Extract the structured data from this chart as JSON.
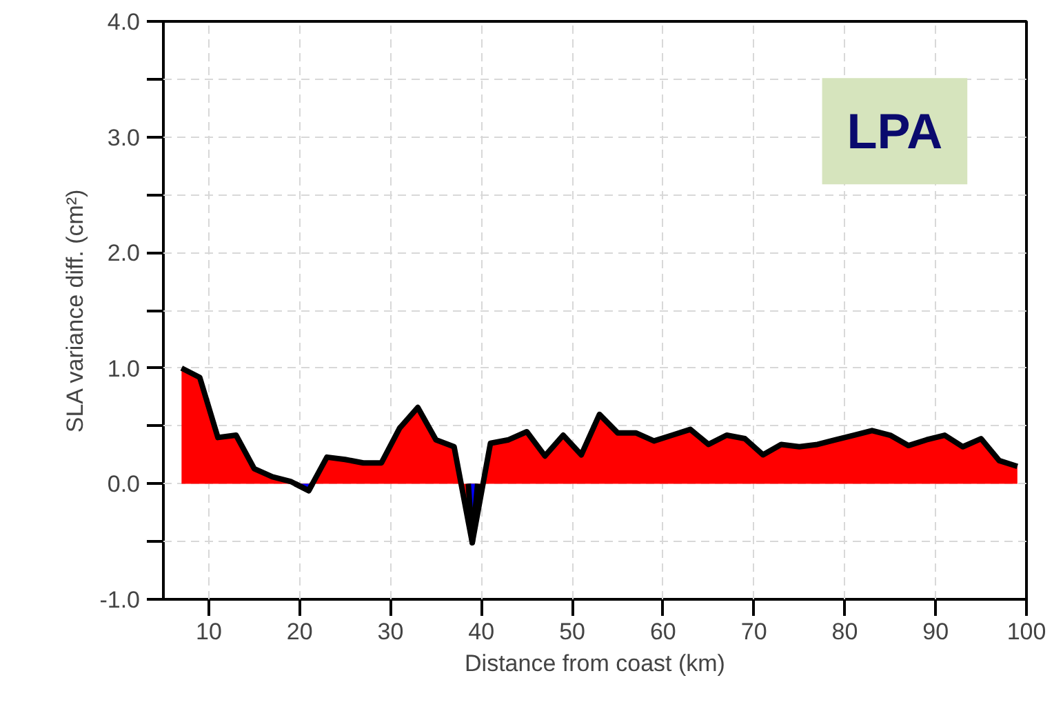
{
  "chart_data": {
    "type": "area",
    "xlabel": "Distance from coast (km)",
    "ylabel": "SLA variance diff. (cm²)",
    "annotations": [
      "LPA"
    ],
    "x": [
      7,
      9,
      11,
      13,
      15,
      17,
      19,
      21,
      23,
      25,
      27,
      29,
      31,
      33,
      35,
      37,
      39,
      41,
      43,
      45,
      47,
      49,
      51,
      53,
      55,
      57,
      59,
      61,
      63,
      65,
      67,
      69,
      71,
      73,
      75,
      77,
      79,
      81,
      83,
      85,
      87,
      89,
      91,
      93,
      95,
      97,
      99
    ],
    "series": [
      {
        "color": "#ff0000",
        "values": [
          1.0,
          0.92,
          0.4,
          0.42,
          0.13,
          0.06,
          0.02,
          -0.06,
          0.23,
          0.21,
          0.18,
          0.18,
          0.48,
          0.66,
          0.38,
          0.32,
          -0.51,
          0.35,
          0.38,
          0.45,
          0.24,
          0.42,
          0.25,
          0.6,
          0.44,
          0.44,
          0.37,
          0.42,
          0.47,
          0.34,
          0.42,
          0.39,
          0.25,
          0.34,
          0.32,
          0.34,
          0.38,
          0.42,
          0.46,
          0.42,
          0.33,
          0.38,
          0.42,
          0.32,
          0.39,
          0.2,
          0.15
        ]
      },
      {
        "color": "#0000ff",
        "x": [
          19.5,
          21,
          21.41
        ],
        "values": [
          0,
          -0.06,
          0
        ]
      },
      {
        "color": "#0000ff",
        "x": [
          38.56,
          39,
          39.59
        ],
        "values": [
          0,
          -0.51,
          0
        ]
      }
    ],
    "xlim": [
      5,
      100
    ],
    "ylim": [
      -1.0,
      4.0
    ],
    "xticks": [
      10,
      20,
      30,
      40,
      50,
      60,
      70,
      80,
      90,
      100
    ],
    "yticks": [
      {
        "value": -1.0,
        "label": "-1.0"
      },
      {
        "value": -0.5,
        "label": null
      },
      {
        "value": 0.0,
        "label": "0.0"
      },
      {
        "value": 0.5,
        "label": null
      },
      {
        "value": 1.0,
        "label": "1.0"
      },
      {
        "value": 1.5,
        "label": null
      },
      {
        "value": 2.0,
        "label": "2.0"
      },
      {
        "value": 2.5,
        "label": null
      },
      {
        "value": 3.0,
        "label": "3.0"
      },
      {
        "value": 3.5,
        "label": null
      },
      {
        "value": 4.0,
        "label": "4.0"
      }
    ],
    "grid": true
  }
}
